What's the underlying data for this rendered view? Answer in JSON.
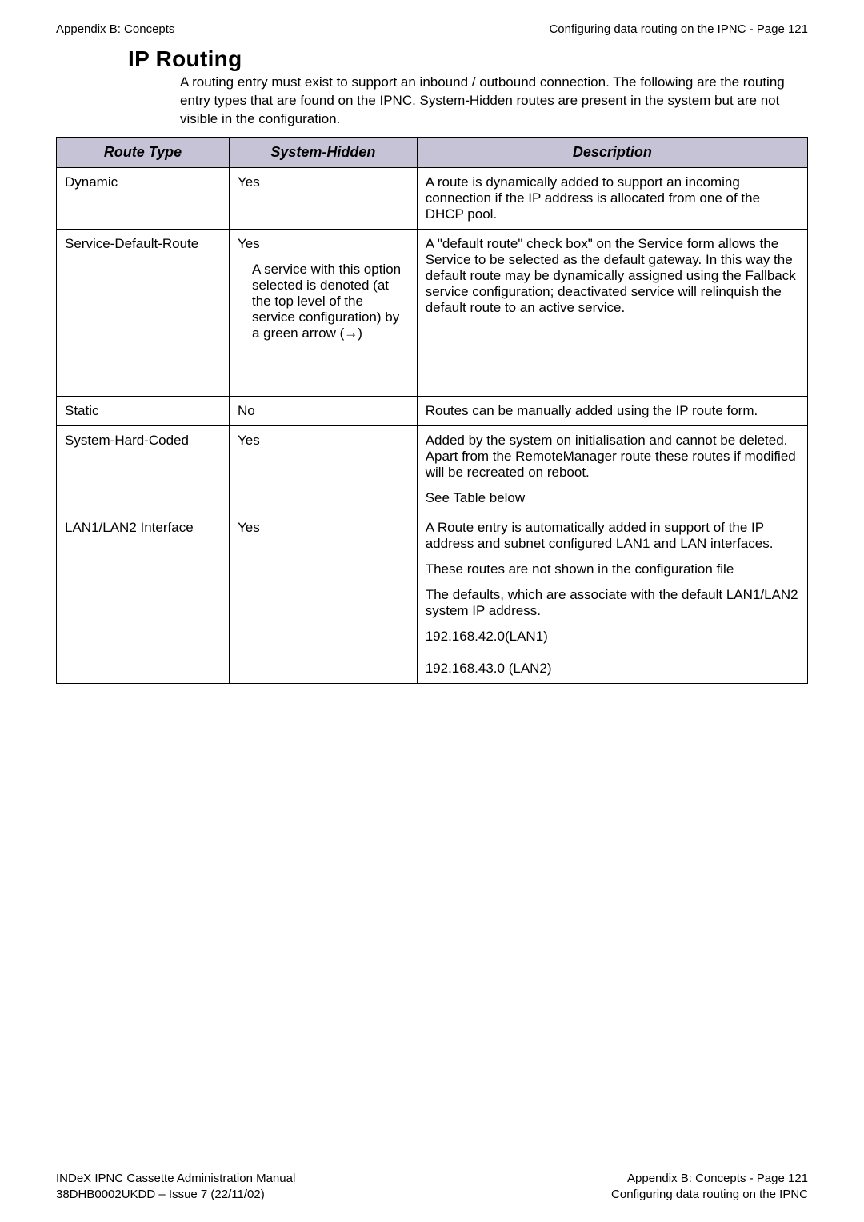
{
  "header": {
    "left": "Appendix B: Concepts",
    "right": "Configuring data routing on the IPNC - Page 121"
  },
  "title": "IP Routing",
  "intro": "A routing entry must exist to support an inbound / outbound connection. The following are the routing entry types that are found on the IPNC. System-Hidden routes are present in the system but are not visible in the configuration.",
  "table": {
    "headers": {
      "route_type": "Route Type",
      "system_hidden": "System-Hidden",
      "description": "Description"
    },
    "rows": {
      "dynamic": {
        "type": "Dynamic",
        "system": "Yes",
        "desc": "A route is dynamically added to support an incoming connection if the IP address is allocated from one of the DHCP pool."
      },
      "sdr": {
        "type": "Service-Default-Route",
        "system_lead": "Yes",
        "system_detail": "A service with this option selected is denoted (at the top level of the service configuration) by a green arrow (→)",
        "desc": "A \"default route\" check box\" on the Service form allows the Service to be selected as the default gateway. In this way the default route may be dynamically assigned using the Fallback service configuration; deactivated service will relinquish the default route to an active service."
      },
      "static": {
        "type": "Static",
        "system": "No",
        "desc": "Routes can be manually added using the IP route form."
      },
      "shc": {
        "type": "System-Hard-Coded",
        "system": "Yes",
        "desc_p1": "Added by the system on initialisation and cannot be deleted.",
        "desc_p2": "Apart from the RemoteManager route these routes if modified will be recreated on reboot.",
        "desc_p3": "See Table below"
      },
      "lan": {
        "type": "LAN1/LAN2 Interface",
        "system": "Yes",
        "desc_p1": "A Route entry is automatically added in support of the IP address and subnet configured LAN1 and LAN interfaces.",
        "desc_p2": "These routes are not shown in the configuration file",
        "desc_p3": "The defaults, which are associate with the default LAN1/LAN2 system IP address.",
        "desc_p4": "192.168.42.0(LAN1)",
        "desc_p5": "192.168.43.0 (LAN2)"
      }
    }
  },
  "footer": {
    "left_line1": "INDeX IPNC Cassette Administration Manual",
    "left_line2": "38DHB0002UKDD – Issue 7 (22/11/02)",
    "right_line1": "Appendix B: Concepts - Page 121",
    "right_line2": "Configuring data routing on the IPNC"
  },
  "colors": {
    "header_bg": "#c6c3d6",
    "border": "#000000",
    "text": "#000000",
    "page_bg": "#ffffff"
  }
}
